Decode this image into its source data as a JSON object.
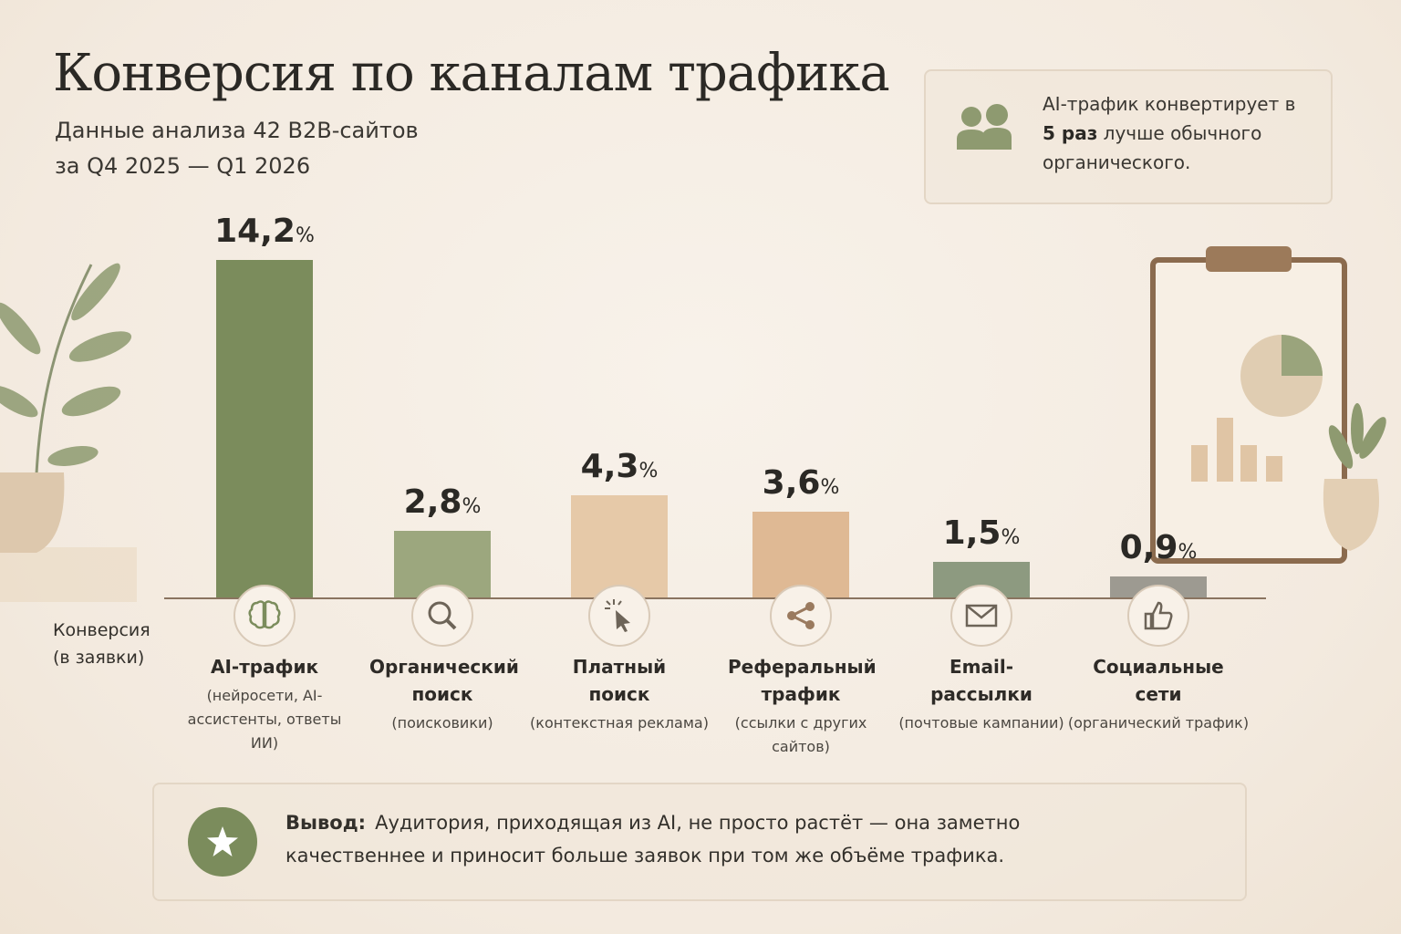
{
  "chart_data": {
    "type": "bar",
    "title": "Конверсия по каналам трафика",
    "subtitle": [
      "Данные анализа 42 B2B-сайтов",
      "за Q4 2025 — Q1 2026"
    ],
    "y_label": [
      "Конверсия",
      "(в заявки)"
    ],
    "categories": [
      "AI-трафик",
      "Органический поиск",
      "Платный поиск",
      "Реферальный трафик",
      "Email-рассылки",
      "Социальные сети"
    ],
    "descriptions": [
      "(нейросети, AI-ассистенты, ответы ИИ)",
      "(поисковики)",
      "(контекстная реклама)",
      "(ссылки с других сайтов)",
      "(почтовые кампании)",
      "(органический трафик)"
    ],
    "values": [
      14.2,
      2.8,
      4.3,
      3.6,
      1.5,
      0.9
    ],
    "value_labels": [
      "14,2",
      "2,8",
      "4,3",
      "3,6",
      "1,5",
      "0,9"
    ],
    "unit": "%",
    "colors": [
      "#7b8c5c",
      "#9ca77e",
      "#e6c9a8",
      "#dfb994",
      "#8d9a80",
      "#9d9a91"
    ],
    "callout": {
      "before": "AI-трафик конвертирует в ",
      "highlight": "5 раз",
      "after": " лучше обычного органического."
    },
    "conclusion": {
      "label": "Вывод:",
      "text": "Аудитория, приходящая из AI, не просто растёт — она заметно качественнее и приносит больше заявок при том же объёме трафика."
    }
  }
}
